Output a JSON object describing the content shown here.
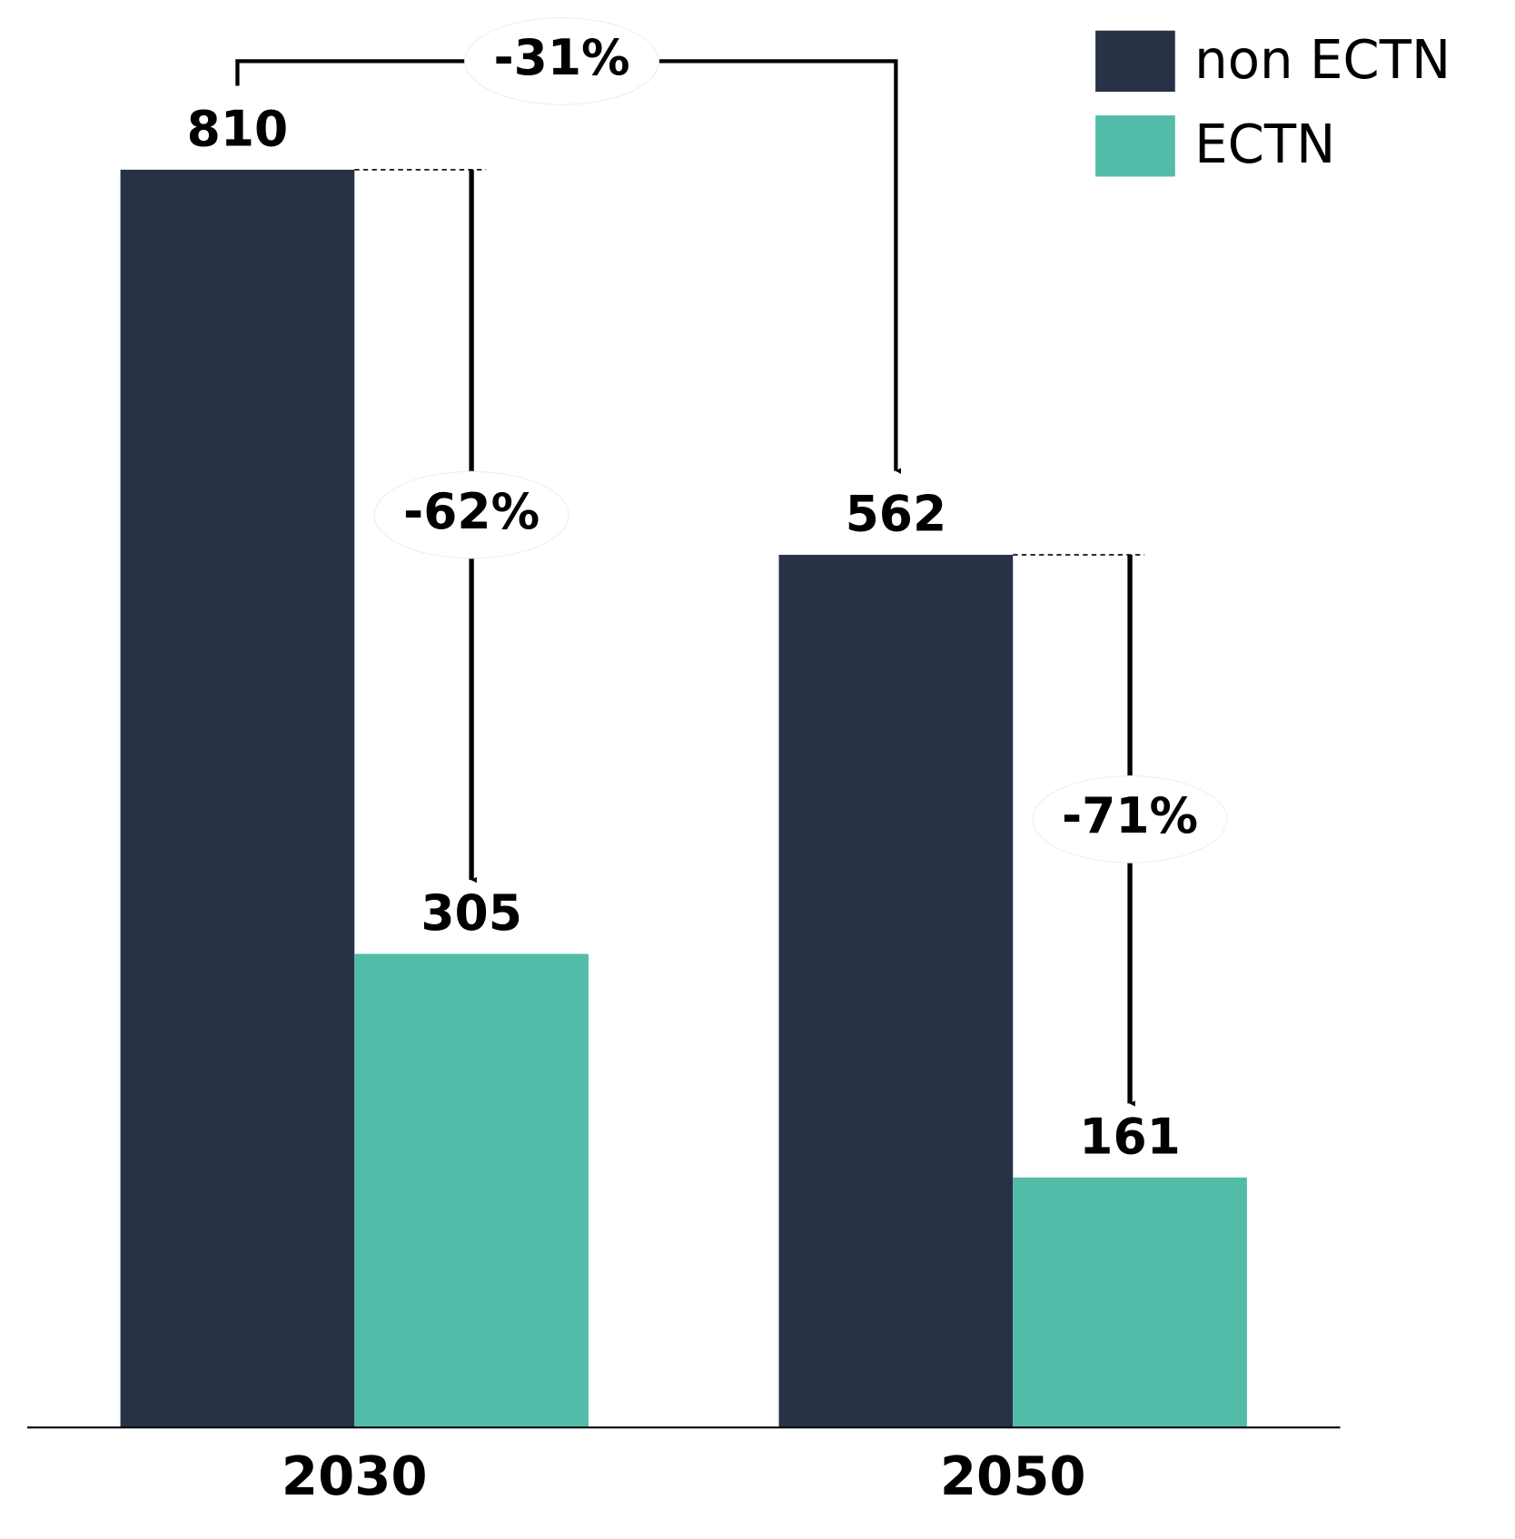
{
  "chart_data": {
    "type": "bar",
    "categories": [
      "2030",
      "2050"
    ],
    "series": [
      {
        "name": "non ECTN",
        "color": "#273246",
        "values": [
          810,
          562
        ]
      },
      {
        "name": "ECTN",
        "color": "#53bca8",
        "values": [
          305,
          161
        ]
      }
    ],
    "annotations": [
      "-31%",
      "-62%",
      "-71%"
    ],
    "legend": "top-right"
  }
}
